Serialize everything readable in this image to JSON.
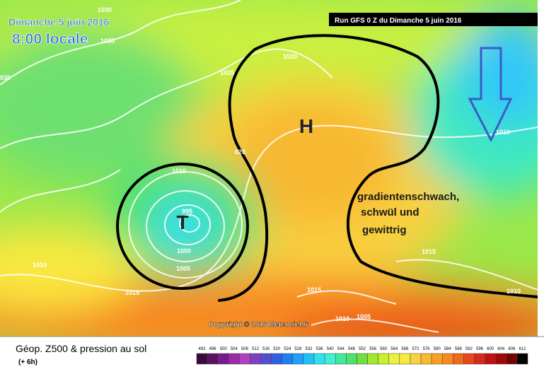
{
  "header": {
    "date": "Dimanche 5 juin 2016",
    "time": "8:00 locale",
    "run": "Run GFS 0 Z du Dimanche 5 juin 2016"
  },
  "map": {
    "high": "H",
    "low": "T",
    "annotation": [
      "gradientenschwach,",
      "schwül und",
      "gewittrig"
    ],
    "isobar_labels": [
      "1030",
      "1035",
      "030",
      "1020",
      "1025",
      "020",
      "1010",
      "995",
      "1000",
      "1005",
      "1010",
      "1015",
      "1010",
      "1015",
      "1015",
      "1010",
      "1005",
      "1010"
    ],
    "copyright": "Copyright © 2016 Meteociel.fr"
  },
  "legend": {
    "title": "Géop. Z500 & pression au sol",
    "lead": "(+ 6h)",
    "scale": [
      492,
      496,
      500,
      504,
      508,
      512,
      516,
      520,
      524,
      528,
      532,
      536,
      540,
      544,
      548,
      552,
      556,
      560,
      564,
      568,
      572,
      576,
      580,
      584,
      588,
      592,
      596,
      600,
      604,
      608,
      612
    ],
    "colors": [
      "#3a0a3a",
      "#5a1060",
      "#7a1a8a",
      "#9a2aaa",
      "#b040c0",
      "#8040c0",
      "#5050d0",
      "#3060e0",
      "#2080f0",
      "#20a0f8",
      "#20c0f8",
      "#30e0f0",
      "#40f0d0",
      "#40e8a0",
      "#50e070",
      "#70e040",
      "#a0e830",
      "#c8f030",
      "#e8f040",
      "#f8e840",
      "#f8d040",
      "#f8b830",
      "#f8a020",
      "#f88820",
      "#f06818",
      "#e84818",
      "#d82818",
      "#c01010",
      "#a00808",
      "#700404",
      "#000000"
    ]
  }
}
